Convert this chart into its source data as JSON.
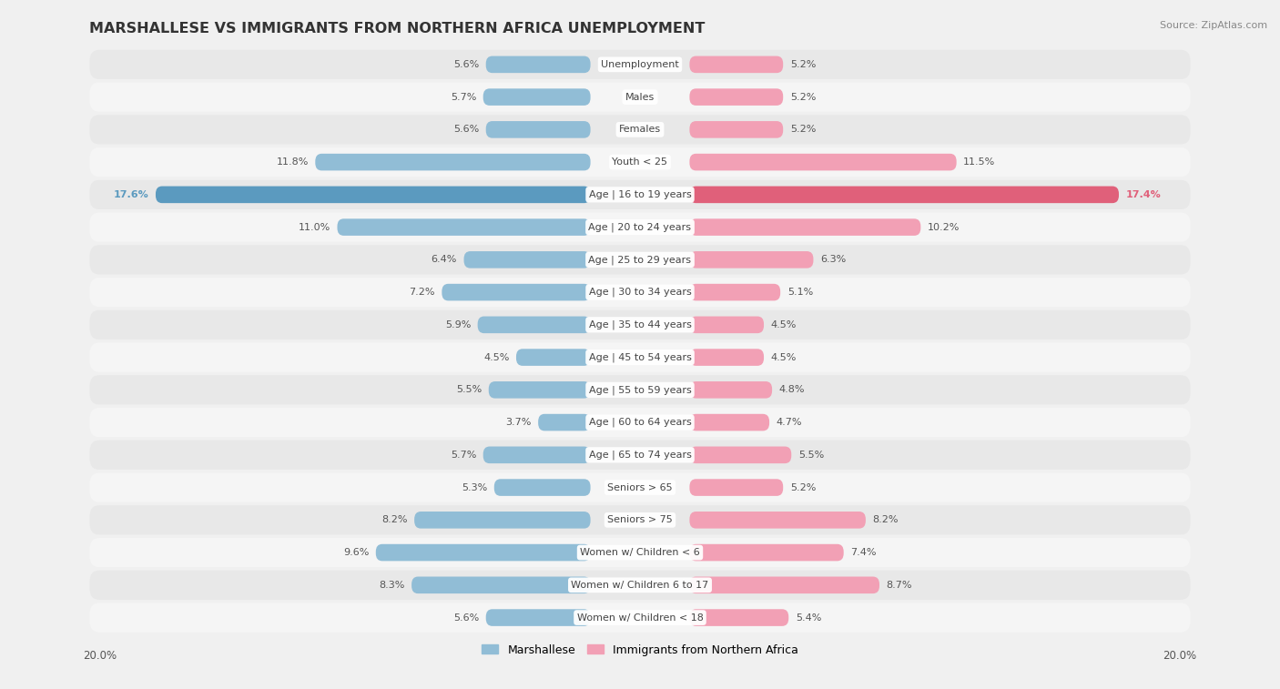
{
  "title": "MARSHALLESE VS IMMIGRANTS FROM NORTHERN AFRICA UNEMPLOYMENT",
  "source": "Source: ZipAtlas.com",
  "categories": [
    "Unemployment",
    "Males",
    "Females",
    "Youth < 25",
    "Age | 16 to 19 years",
    "Age | 20 to 24 years",
    "Age | 25 to 29 years",
    "Age | 30 to 34 years",
    "Age | 35 to 44 years",
    "Age | 45 to 54 years",
    "Age | 55 to 59 years",
    "Age | 60 to 64 years",
    "Age | 65 to 74 years",
    "Seniors > 65",
    "Seniors > 75",
    "Women w/ Children < 6",
    "Women w/ Children 6 to 17",
    "Women w/ Children < 18"
  ],
  "marshallese": [
    5.6,
    5.7,
    5.6,
    11.8,
    17.6,
    11.0,
    6.4,
    7.2,
    5.9,
    4.5,
    5.5,
    3.7,
    5.7,
    5.3,
    8.2,
    9.6,
    8.3,
    5.6
  ],
  "northern_africa": [
    5.2,
    5.2,
    5.2,
    11.5,
    17.4,
    10.2,
    6.3,
    5.1,
    4.5,
    4.5,
    4.8,
    4.7,
    5.5,
    5.2,
    8.2,
    7.4,
    8.7,
    5.4
  ],
  "marshallese_color": "#91bdd6",
  "northern_africa_color": "#f2a0b5",
  "highlight_marshallese_color": "#5b9abf",
  "highlight_northern_africa_color": "#e0607a",
  "bar_height": 0.52,
  "xlim": 20.0,
  "fig_bg": "#f0f0f0",
  "row_bg_even": "#e8e8e8",
  "row_bg_odd": "#f5f5f5",
  "label_fontsize": 8.0,
  "cat_fontsize": 8.0,
  "title_fontsize": 11.5,
  "legend_labels": [
    "Marshallese",
    "Immigrants from Northern Africa"
  ],
  "highlight_row": 4
}
